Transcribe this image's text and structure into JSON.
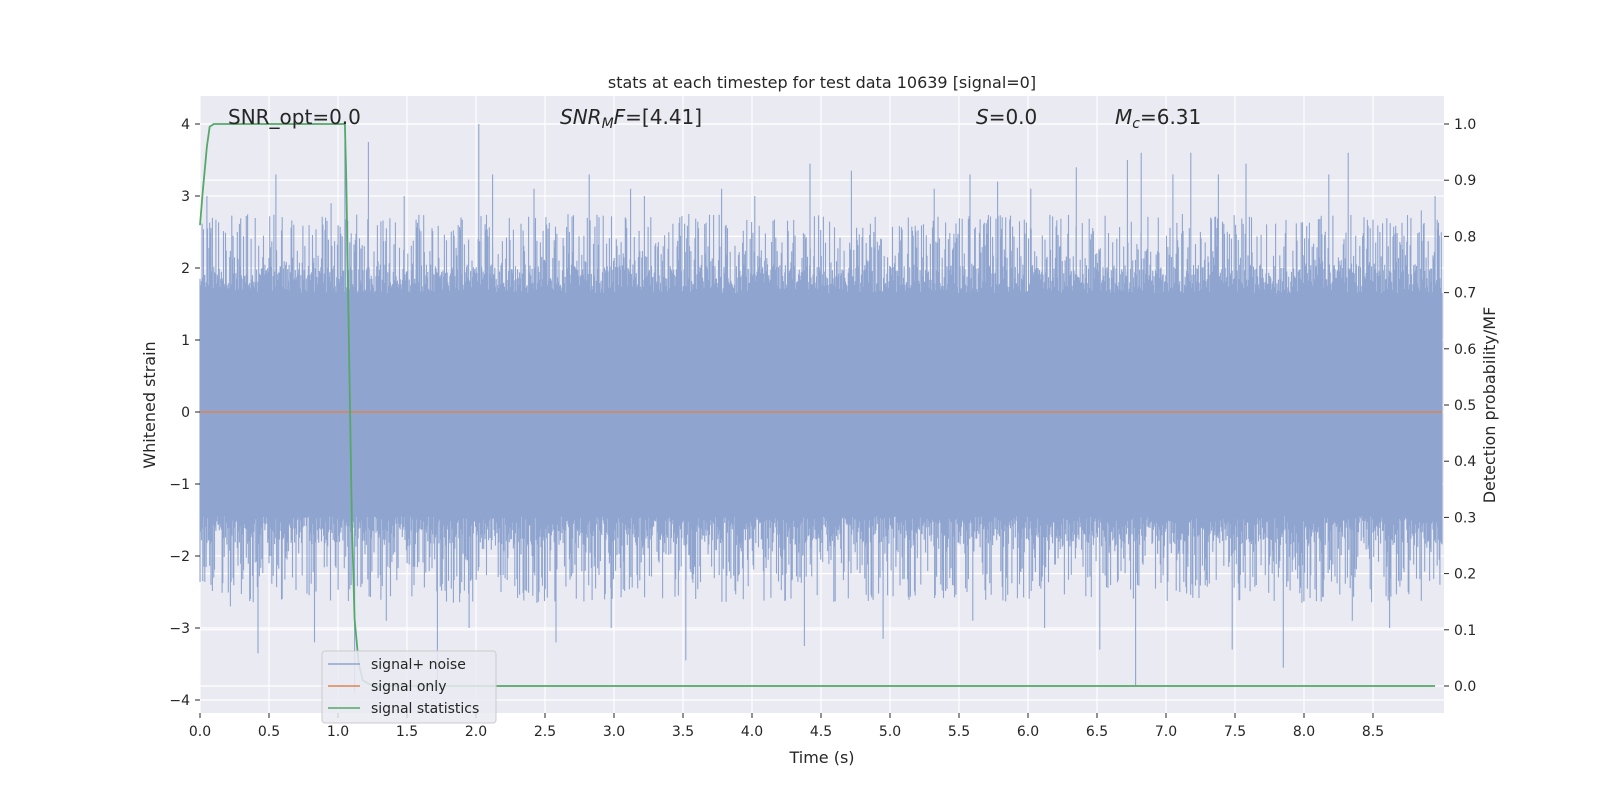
{
  "chart_data": {
    "type": "line",
    "title": "stats at each timestep for test data 10639 [signal=0]",
    "xlabel": "Time (s)",
    "ylabel": "Whitened strain",
    "y2label": "Detection probability/MF",
    "xlim": [
      0.0,
      9.0
    ],
    "ylim": [
      -4.15,
      4.4
    ],
    "y2lim": [
      -0.05,
      1.05
    ],
    "xticks": [
      "0.0",
      "0.5",
      "1.0",
      "1.5",
      "2.0",
      "2.5",
      "3.0",
      "3.5",
      "4.0",
      "4.5",
      "5.0",
      "5.5",
      "6.0",
      "6.5",
      "7.0",
      "7.5",
      "8.0",
      "8.5"
    ],
    "yticks": [
      "4",
      "3",
      "2",
      "1",
      "0",
      "−1",
      "−2",
      "−3",
      "−4"
    ],
    "y2ticks": [
      "1.0",
      "0.9",
      "0.8",
      "0.7",
      "0.6",
      "0.5",
      "0.4",
      "0.3",
      "0.2",
      "0.1",
      "0.0"
    ],
    "grid": true,
    "legend_position": "lower-left",
    "annotations": {
      "snr_opt": "SNR_opt=0.0",
      "snr_mf_main": "SNR",
      "snr_mf_sub": "M",
      "snr_mf_f": "F",
      "snr_mf_value": "=[4.41]",
      "s_label": "S",
      "s_value": "=0.0",
      "mc_main": "M",
      "mc_sub": "c",
      "mc_value": "=6.31"
    },
    "series": [
      {
        "name": "signal+ noise",
        "color": "#8fa5cf",
        "axis": "left",
        "description_values": {
          "amplitude_envelope": [
            -3.8,
            4.0
          ],
          "dense_band": [
            -1.45,
            1.65
          ]
        },
        "spikes": [
          [
            0.05,
            3.0
          ],
          [
            0.1,
            -2.3
          ],
          [
            0.22,
            -2.7
          ],
          [
            0.27,
            2.5
          ],
          [
            0.42,
            -3.35
          ],
          [
            0.55,
            3.3
          ],
          [
            0.68,
            2.6
          ],
          [
            0.83,
            -3.2
          ],
          [
            0.95,
            2.9
          ],
          [
            1.05,
            3.75
          ],
          [
            1.12,
            -3.9
          ],
          [
            1.22,
            3.75
          ],
          [
            1.35,
            -2.9
          ],
          [
            1.48,
            3.0
          ],
          [
            1.72,
            -3.9
          ],
          [
            1.95,
            -3.0
          ],
          [
            2.02,
            4.0
          ],
          [
            2.12,
            3.3
          ],
          [
            2.42,
            3.1
          ],
          [
            2.58,
            -3.2
          ],
          [
            2.82,
            3.3
          ],
          [
            2.98,
            -3.0
          ],
          [
            3.12,
            3.1
          ],
          [
            3.22,
            3.0
          ],
          [
            3.52,
            -3.45
          ],
          [
            3.78,
            3.1
          ],
          [
            4.02,
            3.0
          ],
          [
            4.38,
            -3.25
          ],
          [
            4.42,
            3.45
          ],
          [
            4.72,
            3.35
          ],
          [
            4.95,
            -3.15
          ],
          [
            5.32,
            3.1
          ],
          [
            5.58,
            3.3
          ],
          [
            5.6,
            -2.9
          ],
          [
            5.78,
            3.2
          ],
          [
            6.02,
            3.1
          ],
          [
            6.12,
            -3.0
          ],
          [
            6.35,
            3.4
          ],
          [
            6.52,
            -3.3
          ],
          [
            6.72,
            3.5
          ],
          [
            6.78,
            -3.8
          ],
          [
            6.82,
            3.6
          ],
          [
            7.05,
            3.3
          ],
          [
            7.1,
            -2.5
          ],
          [
            7.18,
            3.6
          ],
          [
            7.38,
            3.3
          ],
          [
            7.48,
            -3.3
          ],
          [
            7.58,
            3.45
          ],
          [
            7.85,
            -3.55
          ],
          [
            8.18,
            3.3
          ],
          [
            8.32,
            3.6
          ],
          [
            8.35,
            -2.9
          ],
          [
            8.55,
            2.5
          ],
          [
            8.62,
            -3.0
          ],
          [
            8.85,
            2.8
          ],
          [
            8.95,
            3.0
          ]
        ]
      },
      {
        "name": "signal only",
        "color": "#dd8452",
        "axis": "left",
        "x": [
          0.0,
          9.0
        ],
        "y": [
          0.0,
          0.0
        ]
      },
      {
        "name": "signal statistics",
        "color": "#55a868",
        "axis": "right",
        "x": [
          0.0,
          0.02,
          0.05,
          0.07,
          0.1,
          0.15,
          1.0,
          1.05,
          1.06,
          1.08,
          1.1,
          1.12,
          1.15,
          1.18,
          1.25,
          1.35,
          9.0
        ],
        "y": [
          0.82,
          0.88,
          0.96,
          0.995,
          1.0,
          1.0,
          1.0,
          1.0,
          0.9,
          0.6,
          0.3,
          0.12,
          0.04,
          0.01,
          0.0,
          0.0,
          0.0
        ]
      }
    ]
  }
}
